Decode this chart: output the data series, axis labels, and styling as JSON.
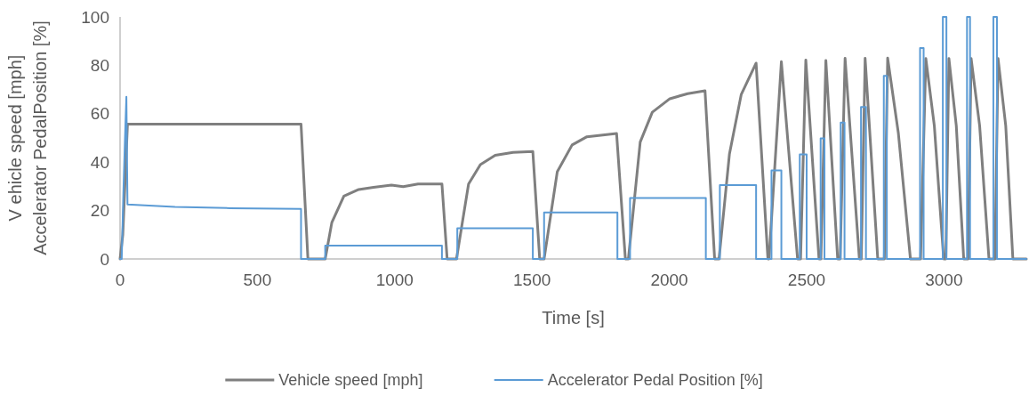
{
  "chart_data": {
    "type": "line",
    "xlabel": "Time [s]",
    "ylabel": "V ehicle speed [mph]\nAccelerator PedalPosition [%]",
    "xlim": [
      0,
      3300
    ],
    "xticks": [
      0,
      500,
      1000,
      1500,
      2000,
      2500,
      3000
    ],
    "ylim": [
      0,
      100
    ],
    "yticks": [
      0,
      20,
      40,
      60,
      80,
      100
    ],
    "legend": "bottom",
    "grid": false,
    "marker": "none",
    "line_style": "solid",
    "series": [
      {
        "name": "Vehicle speed [mph]",
        "color": "#7f7f7f",
        "x": [
          0,
          10,
          27,
          659,
          684,
          747,
          771,
          815,
          869,
          923,
          988,
          1031,
          1085,
          1172,
          1191,
          1225,
          1269,
          1312,
          1366,
          1431,
          1503,
          1528,
          1544,
          1592,
          1646,
          1700,
          1808,
          1840,
          1851,
          1894,
          1938,
          2002,
          2067,
          2130,
          2165,
          2181,
          2219,
          2262,
          2316,
          2359,
          2363,
          2408,
          2467,
          2478,
          2497,
          2545,
          2552,
          2570,
          2613,
          2622,
          2640,
          2692,
          2699,
          2713,
          2759,
          2783,
          2795,
          2834,
          2878,
          2915,
          2934,
          2965,
          2999,
          3007,
          3018,
          3045,
          3072,
          3088,
          3099,
          3130,
          3164,
          3186,
          3197,
          3225,
          3251,
          3300
        ],
        "values": [
          0,
          10,
          55.7,
          55.7,
          0,
          0,
          15,
          26,
          28.7,
          29.6,
          30.5,
          29.9,
          31,
          31,
          0,
          0,
          31,
          39,
          42.8,
          44,
          44.4,
          0,
          0,
          36,
          47.1,
          50.5,
          51.8,
          0,
          0,
          48.3,
          60.6,
          66.2,
          68.3,
          69.5,
          0,
          0,
          43.4,
          68,
          80.9,
          0,
          0,
          81.5,
          0,
          0,
          82.2,
          0,
          0,
          82,
          0,
          0,
          82.9,
          0,
          0,
          82.9,
          0,
          0,
          83,
          52,
          0,
          0,
          82.8,
          55,
          0,
          0,
          82.8,
          55,
          0,
          0,
          82.8,
          55,
          0,
          0,
          82.8,
          55,
          0,
          0
        ]
      },
      {
        "name": "Accelerator Pedal Position [%]",
        "color": "#5b9bd5",
        "x": [
          0,
          6,
          12,
          18,
          23,
          27,
          200,
          400,
          659,
          659,
          747,
          747,
          1172,
          1172,
          1228,
          1228,
          1503,
          1503,
          1544,
          1544,
          1811,
          1811,
          1857,
          1857,
          2133,
          2133,
          2184,
          2184,
          2316,
          2316,
          2372,
          2372,
          2408,
          2408,
          2475,
          2475,
          2500,
          2500,
          2551,
          2551,
          2565,
          2565,
          2624,
          2624,
          2638,
          2638,
          2698,
          2698,
          2716,
          2716,
          2781,
          2781,
          2792,
          2792,
          2913,
          2913,
          2926,
          2926,
          2996,
          2996,
          3009,
          3009,
          3084,
          3084,
          3095,
          3095,
          3180,
          3180,
          3193,
          3193,
          3300
        ],
        "values": [
          0,
          0,
          27,
          50,
          67,
          22.5,
          21.5,
          21,
          20.7,
          0,
          0,
          5.5,
          5.5,
          0,
          0,
          12.7,
          12.7,
          0,
          0,
          19.2,
          19.2,
          0,
          0,
          25.2,
          25.2,
          0,
          0,
          30.5,
          30.5,
          0,
          0,
          36.6,
          36.6,
          0,
          0,
          43.2,
          43.2,
          0,
          0,
          49.8,
          49.8,
          0,
          0,
          56.3,
          56.3,
          0,
          0,
          62.8,
          62.8,
          0,
          0,
          75.6,
          75.6,
          0,
          0,
          87.1,
          87.1,
          0,
          0,
          100,
          100,
          0,
          0,
          100,
          100,
          0,
          0,
          100,
          100,
          0,
          0
        ]
      }
    ]
  }
}
